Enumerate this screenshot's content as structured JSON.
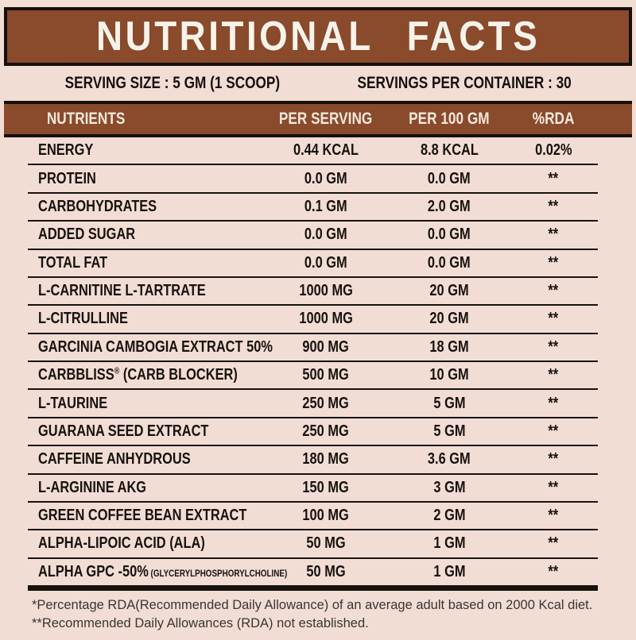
{
  "title": "NUTRITIONAL FACTS",
  "serving": {
    "size": "SERVING SIZE : 5 GM (1 SCOOP)",
    "per_container": "SERVINGS PER CONTAINER : 30"
  },
  "colors": {
    "background": "#f2ddd5",
    "brown": "#8a4a2c",
    "black": "#15100c",
    "title_text": "#f8f3ea",
    "header_text": "#f2e8da"
  },
  "table": {
    "headers": [
      "NUTRIENTS",
      "PER SERVING",
      "PER 100 GM",
      "%RDA"
    ],
    "rows": [
      {
        "nutrient": "ENERGY",
        "per_serving": "0.44 KCAL",
        "per_100gm": "8.8 KCAL",
        "rda": "0.02%"
      },
      {
        "nutrient": "PROTEIN",
        "per_serving": "0.0 GM",
        "per_100gm": "0.0 GM",
        "rda": "**"
      },
      {
        "nutrient": "CARBOHYDRATES",
        "per_serving": "0.1 GM",
        "per_100gm": "2.0 GM",
        "rda": "**"
      },
      {
        "nutrient": "ADDED SUGAR",
        "per_serving": "0.0 GM",
        "per_100gm": "0.0 GM",
        "rda": "**"
      },
      {
        "nutrient": "TOTAL FAT",
        "per_serving": "0.0 GM",
        "per_100gm": "0.0 GM",
        "rda": "**"
      },
      {
        "nutrient": "L-CARNITINE L-TARTRATE",
        "per_serving": "1000 MG",
        "per_100gm": "20 GM",
        "rda": "**"
      },
      {
        "nutrient": "L-CITRULLINE",
        "per_serving": "1000 MG",
        "per_100gm": "20 GM",
        "rda": "**"
      },
      {
        "nutrient": "GARCINIA CAMBOGIA EXTRACT 50%",
        "per_serving": "900 MG",
        "per_100gm": "18 GM",
        "rda": "**"
      },
      {
        "nutrient": "CARBBLISS",
        "sup": "®",
        "suffix": " (CARB BLOCKER)",
        "per_serving": "500 MG",
        "per_100gm": "10 GM",
        "rda": "**"
      },
      {
        "nutrient": "L-TAURINE",
        "per_serving": "250 MG",
        "per_100gm": "5 GM",
        "rda": "**"
      },
      {
        "nutrient": "GUARANA SEED EXTRACT",
        "per_serving": "250 MG",
        "per_100gm": "5 GM",
        "rda": "**"
      },
      {
        "nutrient": "CAFFEINE ANHYDROUS",
        "per_serving": "180 MG",
        "per_100gm": "3.6 GM",
        "rda": "**"
      },
      {
        "nutrient": "L-ARGININE AKG",
        "per_serving": "150 MG",
        "per_100gm": "3 GM",
        "rda": "**"
      },
      {
        "nutrient": "GREEN COFFEE BEAN EXTRACT",
        "per_serving": "100 MG",
        "per_100gm": "2 GM",
        "rda": "**"
      },
      {
        "nutrient": "ALPHA-LIPOIC ACID (ALA)",
        "per_serving": "50 MG",
        "per_100gm": "1 GM",
        "rda": "**"
      },
      {
        "nutrient": "ALPHA GPC -50%",
        "small": " (GLYCERYLPHOSPHORYLCHOLINE)",
        "per_serving": "50 MG",
        "per_100gm": "1 GM",
        "rda": "**"
      }
    ]
  },
  "footnotes": [
    "*Percentage RDA(Recommended Daily Allowance) of an average adult based on 2000 Kcal diet.",
    "**Recommended Daily Allowances (RDA) not established."
  ]
}
